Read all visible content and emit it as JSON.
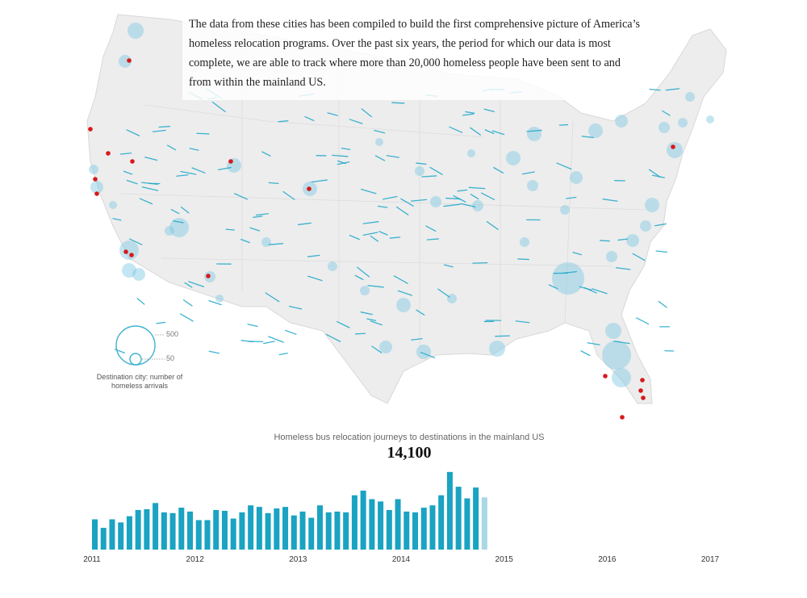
{
  "intro_text": "The data from these cities has been compiled to build the first comprehensive picture of America’s homeless relocation programs. Over the past six years, the period for which our data is most complete, we are able to track where more than 20,000 homeless people have been sent to and from within the mainland US.",
  "legend": {
    "size_labels": [
      "500",
      "50"
    ],
    "caption": "Destination city: number of homeless arrivals"
  },
  "colors": {
    "bar": "#1aa3c2",
    "bar_current": "#a8d8e6",
    "bubble": "#7cc8e3",
    "origin_dot": "#d7191c",
    "land": "#eeeeee"
  },
  "chart_data": {
    "type": "bar",
    "title": "Homeless bus relocation journeys to destinations in the mainland US",
    "counter": "14,100",
    "x_tick_labels": [
      "2011",
      "2012",
      "2013",
      "2014",
      "2015",
      "2016",
      "2017"
    ],
    "x_range_years": [
      2011,
      2017
    ],
    "series": [
      {
        "values": [
          195,
          140,
          195,
          175,
          215,
          255,
          260,
          300,
          240,
          235,
          270,
          245,
          190,
          190,
          255,
          250,
          200,
          240,
          285,
          275,
          235,
          265,
          275,
          220,
          245,
          205,
          285,
          240,
          245,
          240,
          350,
          380,
          325,
          310,
          255,
          325,
          245,
          240,
          270,
          285,
          350,
          500,
          405,
          330,
          400,
          336
        ]
      }
    ],
    "current_bar_index": 45,
    "ylim": [
      0,
      520
    ]
  }
}
